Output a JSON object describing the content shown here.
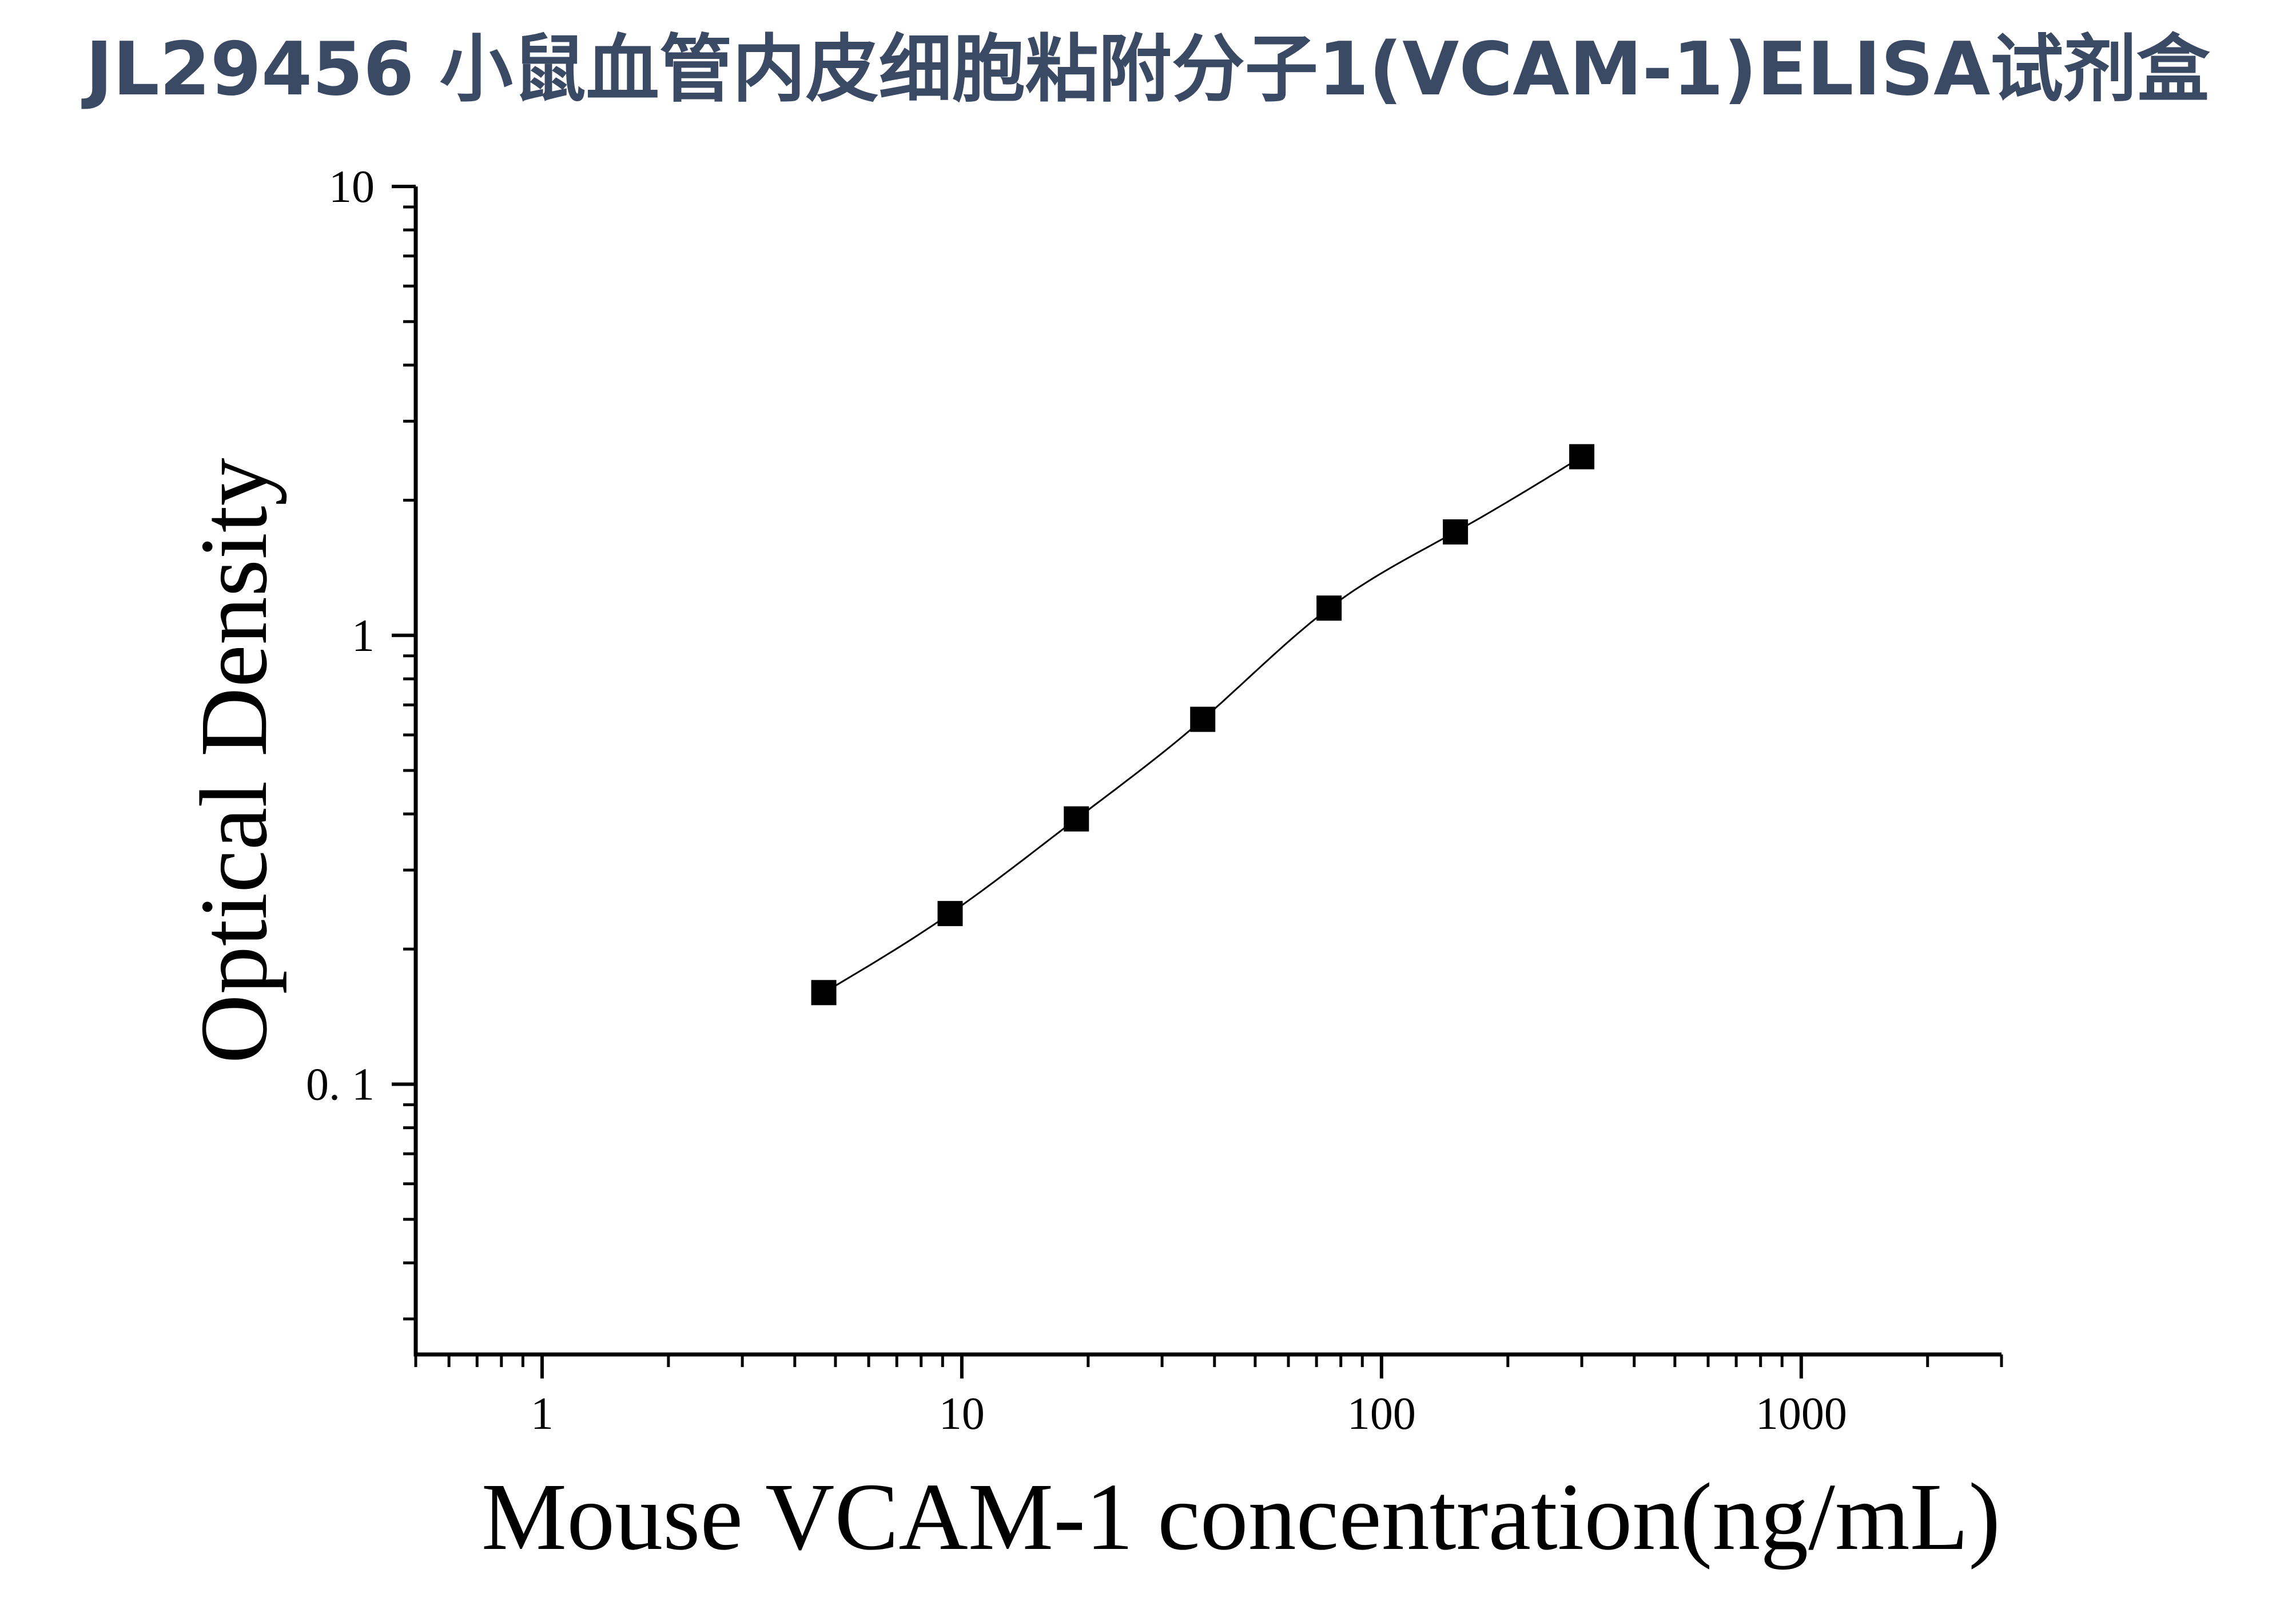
{
  "chart_data": {
    "type": "scatter",
    "title": "JL29456 小鼠血管内皮细胞粘附分子1(VCAM-1)ELISA试剂盒",
    "xlabel": "Mouse VCAM-1 concentration(ng/mL)",
    "ylabel": "Optical Density",
    "x_scale": "log",
    "y_scale": "log",
    "xlim": [
      0.5,
      3000
    ],
    "ylim": [
      0.025,
      10
    ],
    "x_ticks": [
      {
        "value": 1,
        "label": "1"
      },
      {
        "value": 10,
        "label": "10"
      },
      {
        "value": 100,
        "label": "100"
      },
      {
        "value": 1000,
        "label": "1000"
      }
    ],
    "y_ticks": [
      {
        "value": 0.1,
        "label": "0. 1"
      },
      {
        "value": 1,
        "label": "1"
      },
      {
        "value": 10,
        "label": "10"
      }
    ],
    "grid": false,
    "legend": "none",
    "series": [
      {
        "marker": "square",
        "color": "#000000",
        "fit_curve": true,
        "points": [
          {
            "x": 4.69,
            "y": 0.16
          },
          {
            "x": 9.38,
            "y": 0.24
          },
          {
            "x": 18.75,
            "y": 0.39
          },
          {
            "x": 37.5,
            "y": 0.65
          },
          {
            "x": 75,
            "y": 1.15
          },
          {
            "x": 150,
            "y": 1.7
          },
          {
            "x": 300,
            "y": 2.5
          }
        ]
      }
    ]
  }
}
